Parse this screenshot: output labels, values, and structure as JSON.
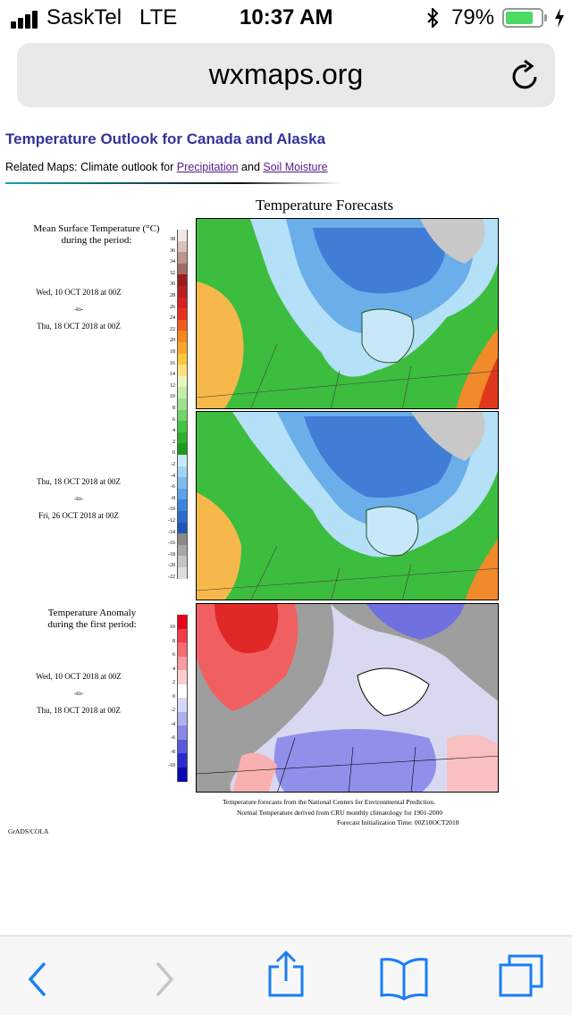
{
  "status_bar": {
    "carrier": "SaskTel",
    "network": "LTE",
    "time": "10:37 AM",
    "battery_percent_text": "79%",
    "battery_level": 0.79,
    "colors": {
      "battery": "#4cd964"
    }
  },
  "browser": {
    "url": "wxmaps.org",
    "icons": [
      "reload-icon",
      "back-icon",
      "forward-icon",
      "share-icon",
      "bookmarks-icon",
      "tabs-icon"
    ]
  },
  "page": {
    "title": "Temperature Outlook for Canada and Alaska",
    "related_prefix": "Related Maps: Climate outlook for ",
    "related_link_1": "Precipitation",
    "related_and": " and ",
    "related_link_2": "Soil Moisture"
  },
  "figure": {
    "title": "Temperature Forecasts",
    "mean_label_1": "Mean Surface Temperature (°C)",
    "mean_label_2": "during the period:",
    "period1": {
      "start": "Wed, 10 OCT 2018 at 00Z",
      "to": "-to-",
      "end": "Thu, 18 OCT 2018 at 00Z"
    },
    "period2": {
      "start": "Thu, 18 OCT 2018 at 00Z",
      "to": "-to-",
      "end": "Fri, 26 OCT 2018 at 00Z"
    },
    "anomaly_label_1": "Temperature Anomaly",
    "anomaly_label_2": "during the first period:",
    "period3": {
      "start": "Wed, 10 OCT 2018 at 00Z",
      "to": "-to-",
      "end": "Thu, 18 OCT 2018 at 00Z"
    },
    "temp_ticks": [
      "38",
      "36",
      "34",
      "32",
      "30",
      "28",
      "26",
      "24",
      "22",
      "20",
      "18",
      "16",
      "14",
      "12",
      "10",
      "8",
      "6",
      "4",
      "2",
      "0",
      "-2",
      "-4",
      "-6",
      "-8",
      "-10",
      "-12",
      "-14",
      "-16",
      "-18",
      "-20",
      "-22"
    ],
    "anom_ticks": [
      "10",
      "8",
      "6",
      "4",
      "2",
      "0",
      "-2",
      "-4",
      "-6",
      "-8",
      "-10"
    ],
    "footnote_1": "Temperature forecasts from the National Centers for Environmental Prediction.",
    "footnote_2": "Normal Temperature derived from CRU monthly climatology for 1901-2000",
    "footnote_3": "Forecast Initialization Time: 00Z10OCT2018",
    "credit": "GrADS/COLA"
  }
}
